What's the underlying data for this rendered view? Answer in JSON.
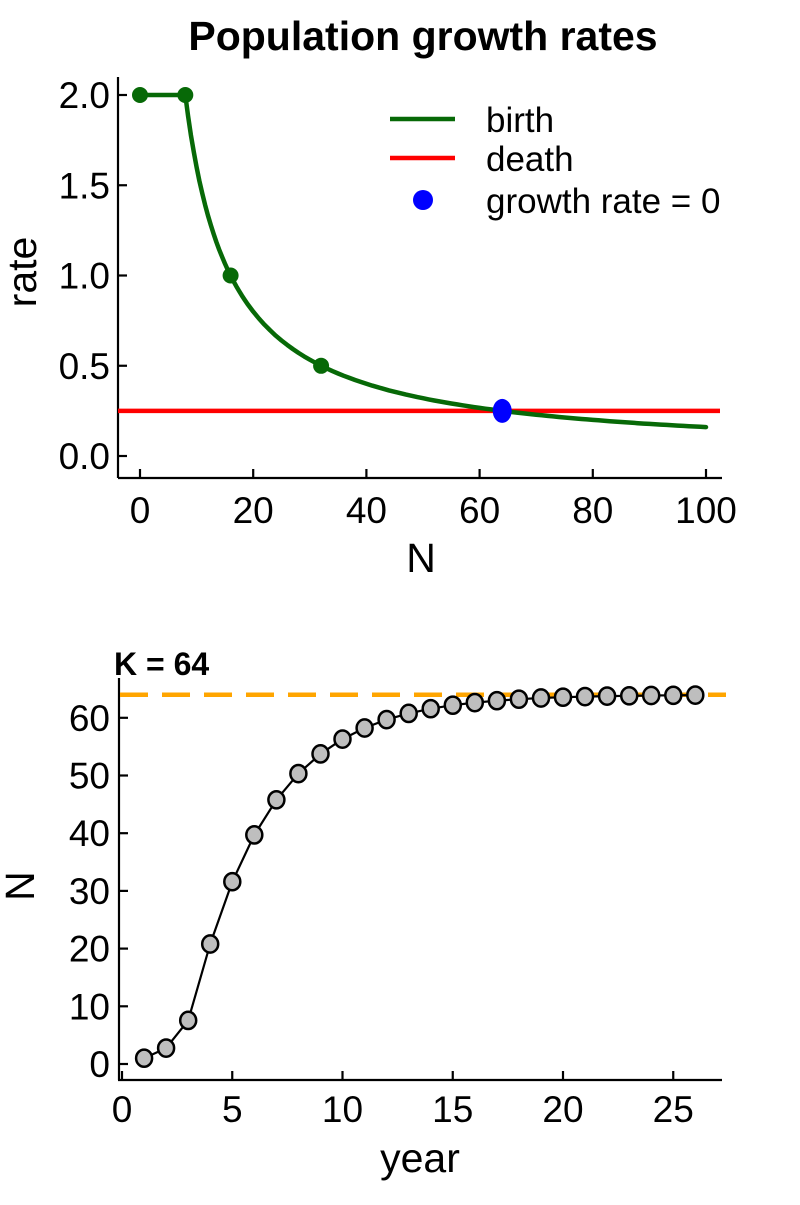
{
  "figure": {
    "background": "#ffffff"
  },
  "chart_data": [
    {
      "type": "line",
      "title": "Population growth rates",
      "xlabel": "N",
      "ylabel": "rate",
      "xlim": [
        0,
        100
      ],
      "ylim": [
        0.0,
        2.0
      ],
      "x_ticks": [
        0,
        20,
        40,
        60,
        80,
        100
      ],
      "y_ticks": [
        "0.0",
        "0.5",
        "1.0",
        "1.5",
        "2.0"
      ],
      "grid": false,
      "legend_position": "upper right inside",
      "legend": [
        "birth",
        "death",
        "growth rate = 0"
      ],
      "birth_series": {
        "name": "birth",
        "color": "#076907",
        "max_rate": 2,
        "breakpoint_N": 8,
        "hyperbola_constant": 16,
        "rule": "rate = 2 for N <= 8, rate = 16/N for N > 8",
        "marker_points": [
          [
            0,
            2
          ],
          [
            8,
            2
          ],
          [
            16,
            1
          ],
          [
            32,
            0.5
          ]
        ]
      },
      "death_series": {
        "name": "death",
        "color": "#ff0000",
        "value": 0.25
      },
      "equilibrium_point": {
        "label": "growth rate = 0",
        "color": "#0000ff",
        "N": 64,
        "rate": 0.25
      }
    },
    {
      "type": "scatter-line",
      "annotation": "K = 64",
      "K": 64,
      "k_line_color": "#ffa500",
      "k_line_style": "dashed",
      "xlabel": "year",
      "ylabel": "N",
      "xlim": [
        0,
        27
      ],
      "ylim": [
        0,
        66
      ],
      "x_ticks": [
        0,
        5,
        10,
        15,
        20,
        25
      ],
      "y_ticks": [
        0,
        10,
        20,
        30,
        40,
        50,
        60
      ],
      "grid": false,
      "line_color": "#000000",
      "point_fill": "#bebebe",
      "point_stroke": "#000000",
      "x": [
        1,
        2,
        3,
        4,
        5,
        6,
        7,
        8,
        9,
        10,
        11,
        12,
        13,
        14,
        15,
        16,
        17,
        18,
        19,
        20,
        21,
        22,
        23,
        24,
        25,
        26
      ],
      "y": [
        1.0,
        2.75,
        7.56,
        20.8,
        31.6,
        39.7,
        45.78,
        50.33,
        53.75,
        56.31,
        58.23,
        59.68,
        60.76,
        61.57,
        62.18,
        62.63,
        62.97,
        63.23,
        63.43,
        63.57,
        63.68,
        63.76,
        63.82,
        63.87,
        63.9,
        63.93
      ]
    }
  ]
}
